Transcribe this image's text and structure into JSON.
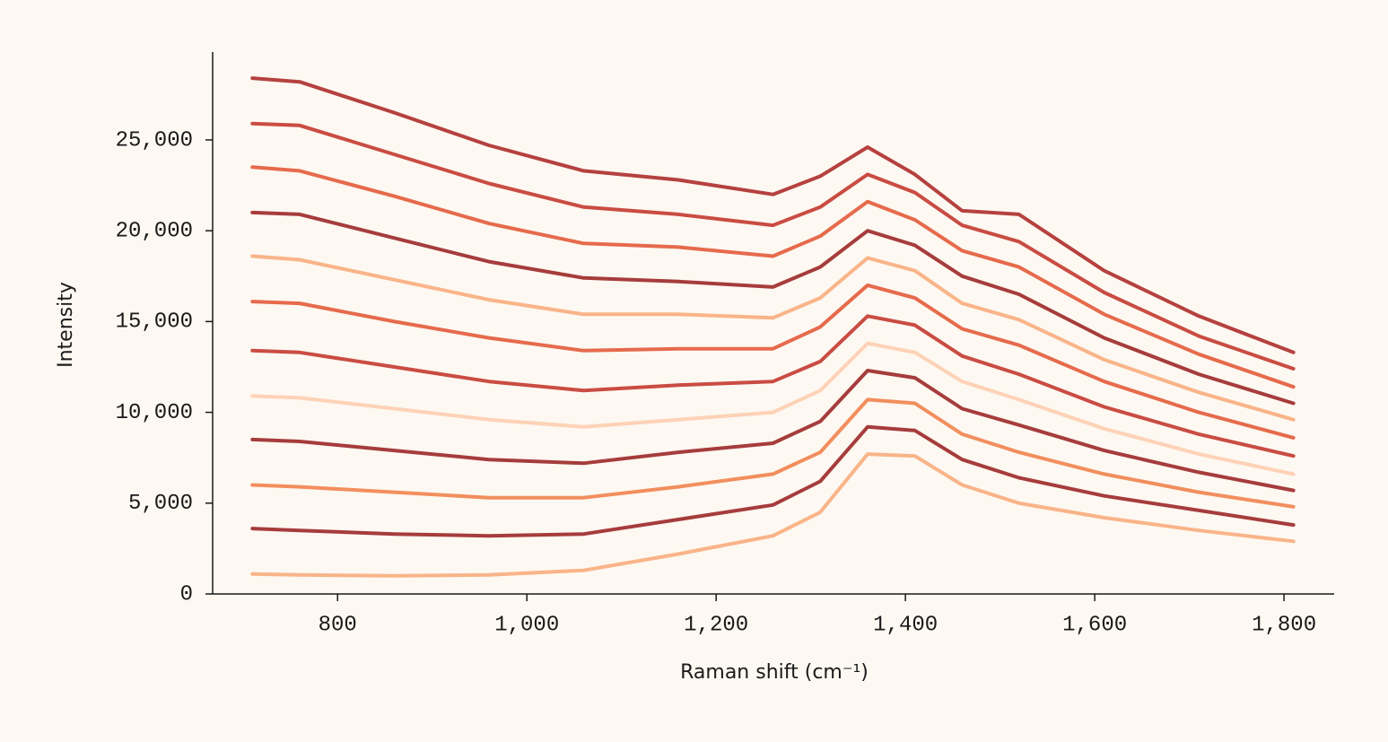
{
  "chart_data": {
    "type": "line",
    "xlabel": "Raman shift (cm⁻¹)",
    "ylabel": "Intensity",
    "x": [
      710,
      760,
      860,
      960,
      1060,
      1160,
      1260,
      1310,
      1360,
      1410,
      1460,
      1520,
      1610,
      1710,
      1810
    ],
    "xlim": [
      668,
      1853
    ],
    "xticks": [
      800,
      {
        "value": 1000,
        "label": "1,000"
      },
      {
        "value": 1200,
        "label": "1,200"
      },
      {
        "value": 1400,
        "label": "1,400"
      },
      {
        "value": 1600,
        "label": "1,600"
      },
      {
        "value": 1800,
        "label": "1,800"
      }
    ],
    "ylim": [
      0,
      29740
    ],
    "yticks": [
      0,
      {
        "value": 5000,
        "label": "5,000"
      },
      {
        "value": 10000,
        "label": "10,000"
      },
      {
        "value": 15000,
        "label": "15,000"
      },
      {
        "value": 20000,
        "label": "20,000"
      },
      {
        "value": 25000,
        "label": "25,000"
      }
    ],
    "series": [
      {
        "color": "#f9b489",
        "values": [
          1100,
          1050,
          1000,
          1050,
          1300,
          2200,
          3200,
          4500,
          7700,
          7600,
          6000,
          5000,
          4200,
          3500,
          2900
        ]
      },
      {
        "color": "#a63c3c",
        "values": [
          3600,
          3500,
          3300,
          3200,
          3300,
          4100,
          4900,
          6200,
          9200,
          9000,
          7400,
          6400,
          5400,
          4600,
          3800
        ]
      },
      {
        "color": "#f28e5e",
        "values": [
          6000,
          5900,
          5600,
          5300,
          5300,
          5900,
          6600,
          7800,
          10700,
          10500,
          8800,
          7800,
          6600,
          5600,
          4800
        ]
      },
      {
        "color": "#a63c3c",
        "values": [
          8500,
          8400,
          7900,
          7400,
          7200,
          7800,
          8300,
          9500,
          12300,
          11900,
          10200,
          9300,
          7900,
          6700,
          5700
        ]
      },
      {
        "color": "#fdd2b6",
        "values": [
          10900,
          10800,
          10200,
          9600,
          9200,
          9600,
          10000,
          11200,
          13800,
          13300,
          11700,
          10700,
          9100,
          7700,
          6600
        ]
      },
      {
        "color": "#c94c43",
        "values": [
          13400,
          13300,
          12500,
          11700,
          11200,
          11500,
          11700,
          12800,
          15300,
          14800,
          13100,
          12100,
          10300,
          8800,
          7600
        ]
      },
      {
        "color": "#e66a4c",
        "values": [
          16100,
          16000,
          15000,
          14100,
          13400,
          13500,
          13500,
          14700,
          17000,
          16300,
          14600,
          13700,
          11700,
          10000,
          8600
        ]
      },
      {
        "color": "#f9b489",
        "values": [
          18600,
          18400,
          17300,
          16200,
          15400,
          15400,
          15200,
          16300,
          18500,
          17800,
          16000,
          15100,
          12900,
          11100,
          9600
        ]
      },
      {
        "color": "#a63c3c",
        "values": [
          21000,
          20900,
          19600,
          18300,
          17400,
          17200,
          16900,
          18000,
          20000,
          19200,
          17500,
          16500,
          14100,
          12100,
          10500
        ]
      },
      {
        "color": "#e66a4c",
        "values": [
          23500,
          23300,
          21900,
          20400,
          19300,
          19100,
          18600,
          19700,
          21600,
          20600,
          18900,
          18000,
          15400,
          13200,
          11400
        ]
      },
      {
        "color": "#c94c43",
        "values": [
          25900,
          25800,
          24200,
          22600,
          21300,
          20900,
          20300,
          21300,
          23100,
          22100,
          20300,
          19400,
          16600,
          14200,
          12400
        ]
      },
      {
        "color": "#b5413f",
        "values": [
          28400,
          28200,
          26500,
          24700,
          23300,
          22800,
          22000,
          23000,
          24600,
          23100,
          21100,
          20900,
          17800,
          15300,
          13300
        ]
      }
    ]
  }
}
